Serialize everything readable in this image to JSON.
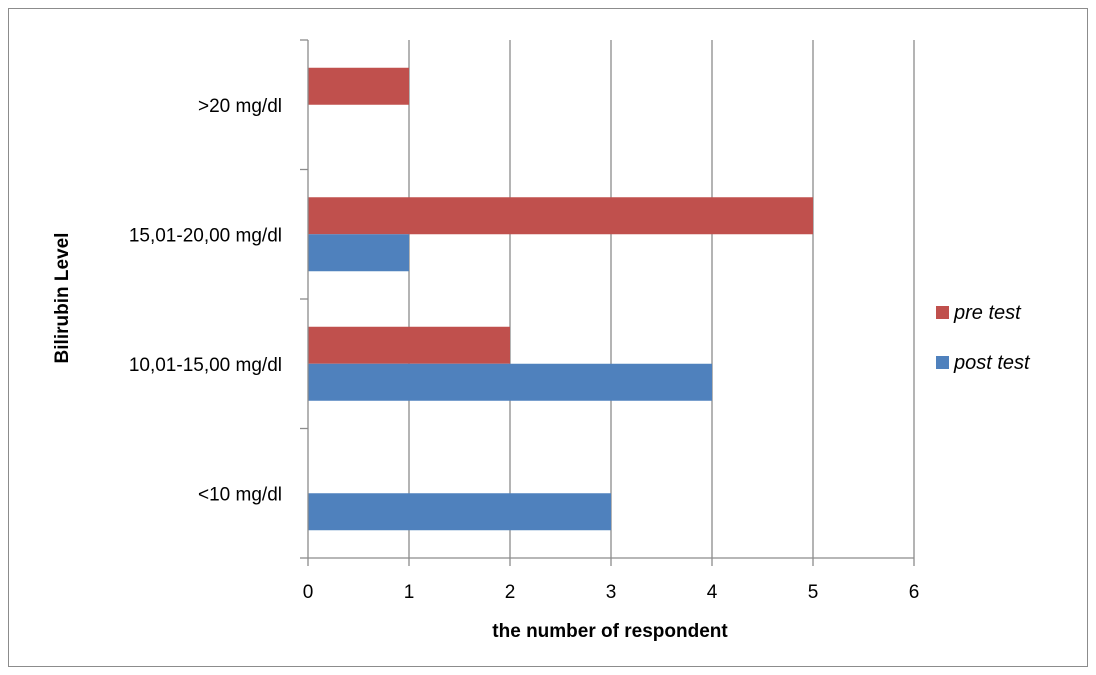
{
  "chart_data": {
    "type": "bar",
    "orientation": "horizontal",
    "categories": [
      "<10 mg/dl",
      "10,01-15,00 mg/dl",
      "15,01-20,00 mg/dl",
      ">20 mg/dl"
    ],
    "series": [
      {
        "name": "post test",
        "color": "#4f81bd",
        "values": [
          3,
          4,
          1,
          0
        ]
      },
      {
        "name": "pre test",
        "color": "#c0504d",
        "values": [
          0,
          2,
          5,
          1
        ]
      }
    ],
    "xlabel": "the number of respondent",
    "ylabel": "Bilirubin Level",
    "xlim": [
      0,
      6
    ],
    "x_ticks": [
      "0",
      "1",
      "2",
      "3",
      "4",
      "5",
      "6"
    ],
    "grid": "vertical",
    "legend_position": "right",
    "legend_order": [
      "pre test",
      "post test"
    ]
  }
}
